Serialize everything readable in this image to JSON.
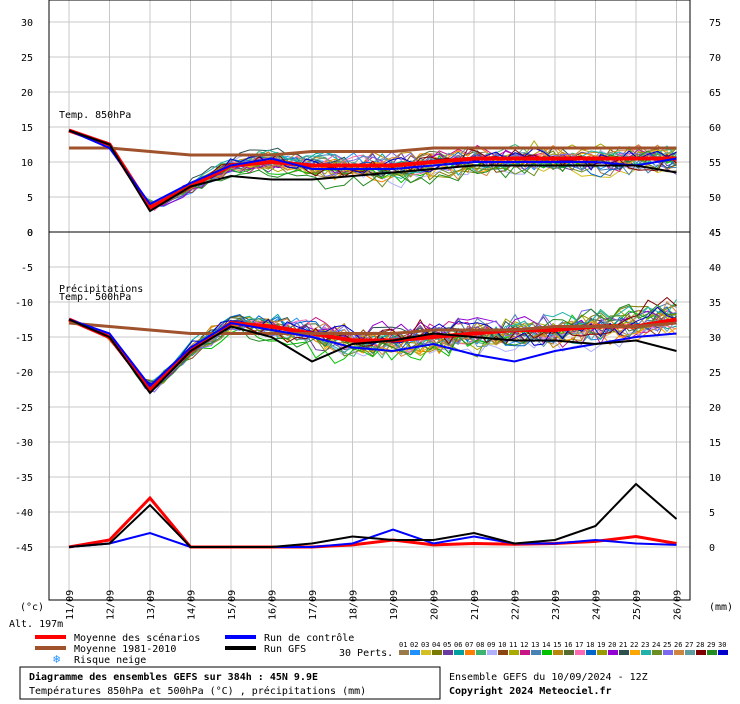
{
  "chart_data": [
    {
      "type": "line",
      "title": "Temp. 850hPa",
      "left_axis": {
        "ticks": [
          0,
          5,
          10,
          15,
          20,
          25,
          30
        ],
        "ylim": [
          0,
          30
        ]
      },
      "right_axis": {
        "ticks": [
          45,
          50,
          55,
          60,
          65,
          70,
          75
        ],
        "ylim": [
          45,
          75
        ]
      },
      "x": [
        "11/09",
        "12/09",
        "13/09",
        "14/09",
        "15/09",
        "16/09",
        "17/09",
        "18/09",
        "19/09",
        "20/09",
        "21/09",
        "22/09",
        "23/09",
        "24/09",
        "25/09",
        "26/09"
      ],
      "series": [
        {
          "name": "Moyenne des scénarios",
          "color": "#ff0000",
          "values": [
            14.5,
            12.5,
            3.5,
            6.5,
            9.5,
            10.0,
            9.5,
            9.5,
            9.5,
            10.0,
            10.5,
            10.5,
            10.5,
            10.5,
            10.5,
            10.5
          ]
        },
        {
          "name": "Moyenne 1981-2010",
          "color": "#a0522d",
          "values": [
            12.0,
            12.0,
            11.5,
            11.0,
            11.0,
            11.0,
            11.5,
            11.5,
            11.5,
            12.0,
            12.0,
            12.0,
            12.0,
            12.0,
            12.0,
            12.0
          ]
        },
        {
          "name": "Run de contrôle",
          "color": "#0000ff",
          "values": [
            14.5,
            12.0,
            4.0,
            7.0,
            9.5,
            10.5,
            9.0,
            9.0,
            9.0,
            9.5,
            10.0,
            10.0,
            10.0,
            10.0,
            9.5,
            10.5
          ]
        },
        {
          "name": "Run GFS",
          "color": "#000000",
          "values": [
            14.5,
            12.5,
            3.0,
            6.5,
            8.0,
            7.5,
            7.5,
            8.0,
            8.5,
            9.0,
            9.5,
            9.5,
            9.5,
            9.5,
            9.5,
            8.5
          ]
        }
      ]
    },
    {
      "type": "line",
      "title": "Temp. 500hPa",
      "title2": "Précipitations",
      "left_axis": {
        "ticks": [
          -45,
          -40,
          -35,
          -30,
          -25,
          -20,
          -15,
          -10,
          -5,
          0
        ],
        "ylim": [
          -45,
          0
        ]
      },
      "right_axis": {
        "ticks": [
          0,
          5,
          10,
          15,
          20,
          25,
          30,
          35,
          40,
          45
        ],
        "ylim": [
          0,
          45
        ]
      },
      "x": [
        "11/09",
        "12/09",
        "13/09",
        "14/09",
        "15/09",
        "16/09",
        "17/09",
        "18/09",
        "19/09",
        "20/09",
        "21/09",
        "22/09",
        "23/09",
        "24/09",
        "25/09",
        "26/09"
      ],
      "series": [
        {
          "name": "Moyenne des scénarios",
          "color": "#ff0000",
          "values": [
            -12.5,
            -15.0,
            -22.5,
            -17.0,
            -13.0,
            -13.5,
            -14.5,
            -15.5,
            -15.5,
            -15.0,
            -14.5,
            -14.0,
            -14.0,
            -13.5,
            -13.5,
            -12.5
          ]
        },
        {
          "name": "Moyenne 1981-2010",
          "color": "#a0522d",
          "values": [
            -13.0,
            -13.5,
            -14.0,
            -14.5,
            -14.5,
            -14.5,
            -14.5,
            -14.5,
            -14.5,
            -14.0,
            -14.0,
            -14.0,
            -13.5,
            -13.5,
            -13.5,
            -13.0
          ]
        },
        {
          "name": "Run de contrôle",
          "color": "#0000ff",
          "values": [
            -12.5,
            -14.5,
            -22.0,
            -16.5,
            -13.0,
            -14.0,
            -15.0,
            -16.5,
            -17.0,
            -16.0,
            -17.5,
            -18.5,
            -17.0,
            -16.0,
            -15.0,
            -14.5
          ]
        },
        {
          "name": "Run GFS",
          "color": "#000000",
          "values": [
            -12.5,
            -15.0,
            -23.0,
            -17.0,
            -13.5,
            -15.0,
            -18.5,
            -16.0,
            -15.5,
            -14.5,
            -15.0,
            -15.5,
            -15.5,
            -16.0,
            -15.5,
            -17.0
          ]
        }
      ],
      "precip": [
        {
          "name": "Moyenne des scénarios",
          "color": "#ff0000",
          "values": [
            0,
            1.0,
            7.0,
            0,
            0,
            0,
            0,
            0.3,
            1.0,
            0.3,
            0.5,
            0.4,
            0.5,
            0.8,
            1.5,
            0.5
          ]
        },
        {
          "name": "Run de contrôle",
          "color": "#0000ff",
          "values": [
            0,
            0.5,
            2.0,
            0,
            0,
            0,
            0,
            0.5,
            2.5,
            0.5,
            1.5,
            0.5,
            0.5,
            1.0,
            0.5,
            0.3
          ]
        },
        {
          "name": "Run GFS",
          "color": "#000000",
          "values": [
            0,
            0.5,
            6.0,
            0,
            0,
            0,
            0.5,
            1.5,
            1.0,
            1.0,
            2.0,
            0.5,
            1.0,
            3.0,
            9.0,
            4.0
          ]
        }
      ]
    }
  ],
  "axis": {
    "unit_left": "(°c)",
    "unit_right": "(mm)",
    "altitude": "Alt. 197m"
  },
  "legend": {
    "mean": "Moyenne des scénarios",
    "climatology": "Moyenne 1981-2010",
    "snow_risk": "Risque neige",
    "control": "Run de contrôle",
    "gfs": "Run GFS",
    "perts_label": "30 Perts.",
    "perts": [
      "01",
      "02",
      "03",
      "04",
      "05",
      "06",
      "07",
      "08",
      "09",
      "10",
      "11",
      "12",
      "13",
      "14",
      "15",
      "16",
      "17",
      "18",
      "19",
      "20",
      "21",
      "22",
      "23",
      "24",
      "25",
      "26",
      "27",
      "28",
      "29",
      "30"
    ],
    "perts_colors": [
      "#9a7a4a",
      "#1e90ff",
      "#d4c020",
      "#7a7a00",
      "#6a3aa0",
      "#00a0a0",
      "#ff7f00",
      "#3cb371",
      "#b0b0ff",
      "#8b4513",
      "#aaaa00",
      "#c71585",
      "#4682b4",
      "#00c000",
      "#b8860b",
      "#556b2f",
      "#ff69b4",
      "#0066cc",
      "#999900",
      "#9400d3",
      "#2f4f4f",
      "#ffa500",
      "#20b2aa",
      "#6b8e23",
      "#7b68ee",
      "#cd853f",
      "#5f9ea0",
      "#800000",
      "#228b22",
      "#0000cd"
    ]
  },
  "footer": {
    "title": "Diagramme des ensembles GEFS sur 384h : 45N 9.9E",
    "subtitle": "Températures 850hPa et 500hPa (°C) , précipitations (mm)",
    "ensemble": "Ensemble GEFS du 10/09/2024 - 12Z",
    "copyright": "Copyright 2024 Meteociel.fr"
  }
}
